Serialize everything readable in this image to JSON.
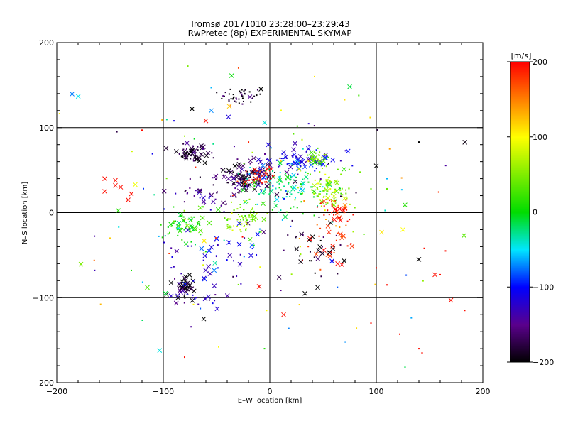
{
  "chart_data": {
    "type": "scatter",
    "title": "Tromsø 20171010 23:28:00–23:29:43",
    "subtitle": "RwPretec (8p) EXPERIMENTAL SKYMAP",
    "xlabel": "E–W location [km]",
    "ylabel": "N–S location [km]",
    "xlim": [
      -200,
      200
    ],
    "ylim": [
      -200,
      200
    ],
    "xticks": [
      "−200",
      "−100",
      "0",
      "100",
      "200"
    ],
    "yticks": [
      "−200",
      "−100",
      "0",
      "100",
      "200"
    ],
    "grid": true,
    "colorbar": {
      "unit": "[m/s]",
      "range": [
        -200,
        200
      ],
      "ticks": [
        "−200",
        "−100",
        "0",
        "100",
        "200"
      ],
      "colormap": "rainbow"
    },
    "clusters": [
      {
        "x": -25,
        "y": 138,
        "sx": 11,
        "sy": 5,
        "v": -190,
        "n": 45,
        "xfrac": 0.1
      },
      {
        "x": -73,
        "y": 70,
        "sx": 7,
        "sy": 5,
        "v": -185,
        "n": 60,
        "xfrac": 0.5
      },
      {
        "x": -22,
        "y": 40,
        "sx": 14,
        "sy": 9,
        "v": -170,
        "n": 130,
        "xfrac": 0.45
      },
      {
        "x": -10,
        "y": 42,
        "sx": 8,
        "sy": 6,
        "v": 185,
        "n": 35,
        "xfrac": 0.3
      },
      {
        "x": 25,
        "y": 62,
        "sx": 20,
        "sy": 7,
        "v": -110,
        "n": 90,
        "xfrac": 0.35
      },
      {
        "x": 45,
        "y": 65,
        "sx": 8,
        "sy": 5,
        "v": 40,
        "n": 30,
        "xfrac": 0.2
      },
      {
        "x": 15,
        "y": 30,
        "sx": 20,
        "sy": 12,
        "v": -20,
        "n": 110,
        "xfrac": 0.15
      },
      {
        "x": 55,
        "y": 25,
        "sx": 12,
        "sy": 12,
        "v": 60,
        "n": 90,
        "xfrac": 0.1
      },
      {
        "x": 62,
        "y": 3,
        "sx": 8,
        "sy": 8,
        "v": 195,
        "n": 45,
        "xfrac": 0.2
      },
      {
        "x": 60,
        "y": -35,
        "sx": 10,
        "sy": 20,
        "v": 180,
        "n": 35,
        "xfrac": 0.4
      },
      {
        "x": 40,
        "y": -40,
        "sx": 15,
        "sy": 12,
        "v": -190,
        "n": 30,
        "xfrac": 0.5
      },
      {
        "x": -80,
        "y": -15,
        "sx": 9,
        "sy": 9,
        "v": 10,
        "n": 70,
        "xfrac": 0.2
      },
      {
        "x": -25,
        "y": -5,
        "sx": 12,
        "sy": 10,
        "v": 50,
        "n": 70,
        "xfrac": 0.1
      },
      {
        "x": -82,
        "y": -88,
        "sx": 5,
        "sy": 7,
        "v": -195,
        "n": 40,
        "xfrac": 0.6
      },
      {
        "x": -70,
        "y": -95,
        "sx": 15,
        "sy": 10,
        "v": -130,
        "n": 25,
        "xfrac": 0.6
      },
      {
        "x": -50,
        "y": -50,
        "sx": 30,
        "sy": 20,
        "v": -120,
        "n": 45,
        "xfrac": 0.4
      },
      {
        "x": -60,
        "y": 20,
        "sx": 15,
        "sy": 10,
        "v": -150,
        "n": 35,
        "xfrac": 0.3
      },
      {
        "x": 0,
        "y": 0,
        "sx": 110,
        "sy": 95,
        "v": 0,
        "n": 140,
        "xfrac": 0.15,
        "vr": 1
      }
    ],
    "explicit_points": [
      {
        "x": -155,
        "y": 40,
        "v": 195,
        "m": "x"
      },
      {
        "x": -145,
        "y": 38,
        "v": 195,
        "m": "x"
      },
      {
        "x": -140,
        "y": 30,
        "v": 195,
        "m": "x"
      },
      {
        "x": -130,
        "y": 22,
        "v": 195,
        "m": "x"
      },
      {
        "x": -155,
        "y": 25,
        "v": 195,
        "m": "x"
      },
      {
        "x": -145,
        "y": 32,
        "v": 195,
        "m": "x"
      },
      {
        "x": -133,
        "y": 15,
        "v": 195,
        "m": "x"
      },
      {
        "x": 75,
        "y": 148,
        "v": -10,
        "m": "x"
      },
      {
        "x": 140,
        "y": 83,
        "v": -200,
        "m": "."
      },
      {
        "x": 42,
        "y": 160,
        "v": 110,
        "m": "."
      },
      {
        "x": 105,
        "y": -23,
        "v": 110,
        "m": "x"
      },
      {
        "x": 125,
        "y": -20,
        "v": 100,
        "m": "x"
      },
      {
        "x": 140,
        "y": -55,
        "v": -200,
        "m": "x"
      },
      {
        "x": 170,
        "y": -103,
        "v": 195,
        "m": "x"
      },
      {
        "x": 183,
        "y": -115,
        "v": 195,
        "m": "."
      },
      {
        "x": 155,
        "y": -73,
        "v": 195,
        "m": "x"
      },
      {
        "x": 160,
        "y": -73,
        "v": 195,
        "m": "."
      },
      {
        "x": 140,
        "y": -160,
        "v": 195,
        "m": "."
      },
      {
        "x": 143,
        "y": -165,
        "v": 195,
        "m": "."
      },
      {
        "x": 122,
        "y": -143,
        "v": 195,
        "m": "."
      },
      {
        "x": 95,
        "y": -130,
        "v": 195,
        "m": "."
      },
      {
        "x": 165,
        "y": -45,
        "v": 195,
        "m": "."
      },
      {
        "x": 145,
        "y": -42,
        "v": 195,
        "m": "."
      },
      {
        "x": 100,
        "y": -65,
        "v": 195,
        "m": "."
      },
      {
        "x": 110,
        "y": -85,
        "v": 195,
        "m": "."
      },
      {
        "x": 33,
        "y": -95,
        "v": -200,
        "m": "x"
      },
      {
        "x": 45,
        "y": -88,
        "v": -200,
        "m": "x"
      },
      {
        "x": 13,
        "y": -120,
        "v": 195,
        "m": "x"
      },
      {
        "x": -5,
        "y": -160,
        "v": 10,
        "m": "."
      },
      {
        "x": -98,
        "y": -95,
        "v": -10,
        "m": "x"
      },
      {
        "x": -115,
        "y": -88,
        "v": 30,
        "m": "x"
      },
      {
        "x": -80,
        "y": -170,
        "v": 195,
        "m": "."
      },
      {
        "x": -48,
        "y": -158,
        "v": 100,
        "m": "."
      },
      {
        "x": -130,
        "y": -68,
        "v": 10,
        "m": "."
      },
      {
        "x": -150,
        "y": -30,
        "v": 120,
        "m": "."
      },
      {
        "x": -62,
        "y": -125,
        "v": -200,
        "m": "x"
      },
      {
        "x": -3,
        "y": -115,
        "v": 100,
        "m": "."
      },
      {
        "x": 100,
        "y": 55,
        "v": -200,
        "m": "x"
      },
      {
        "x": 110,
        "y": 40,
        "v": -60,
        "m": "."
      },
      {
        "x": 110,
        "y": 28,
        "v": 40,
        "m": "."
      },
      {
        "x": 95,
        "y": 28,
        "v": 40,
        "m": "."
      },
      {
        "x": -120,
        "y": 97,
        "v": 195,
        "m": "."
      },
      {
        "x": -90,
        "y": 108,
        "v": -110,
        "m": "."
      },
      {
        "x": -80,
        "y": 90,
        "v": 60,
        "m": "."
      },
      {
        "x": -60,
        "y": 108,
        "v": 195,
        "m": "x"
      },
      {
        "x": -73,
        "y": 122,
        "v": -200,
        "m": "x"
      },
      {
        "x": -55,
        "y": 120,
        "v": -70,
        "m": "x"
      },
      {
        "x": -55,
        "y": 147,
        "v": -60,
        "m": "."
      },
      {
        "x": -38,
        "y": 125,
        "v": 120,
        "m": "x"
      }
    ]
  }
}
